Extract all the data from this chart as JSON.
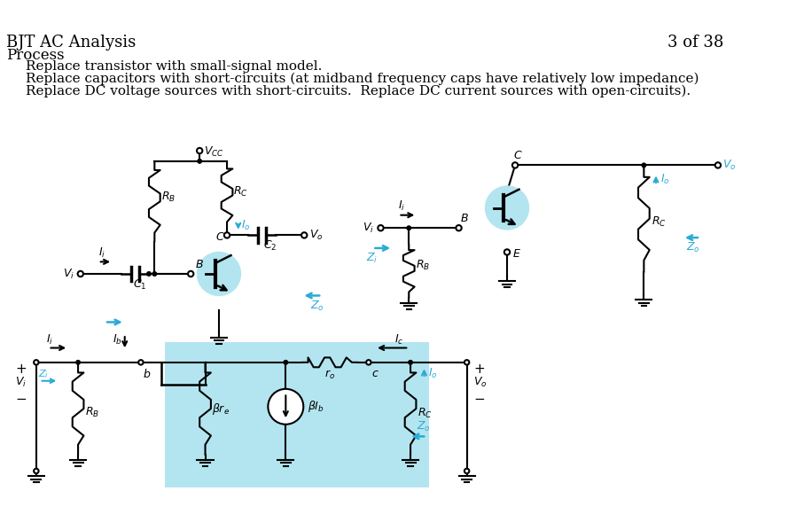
{
  "title": "BJT AC Analysis",
  "slide_num": "3 of 38",
  "process_label": "Process",
  "bullet1": "Replace transistor with small-signal model.",
  "bullet2": "Replace capacitors with short-circuits (at midband frequency caps have relatively low impedance)",
  "bullet3": "Replace DC voltage sources with short-circuits.  Replace DC current sources with open-circuits).",
  "bg_color": "#ffffff",
  "text_color": "#000000",
  "blue_color": "#29ABD4",
  "light_blue_bg": "#B3E5F0"
}
